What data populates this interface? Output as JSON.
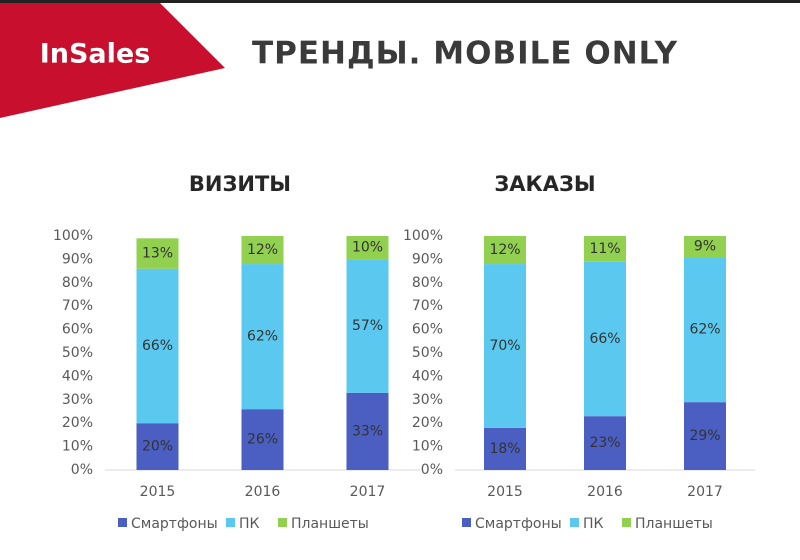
{
  "header": {
    "logo": "InSales",
    "title": "ТРЕНДЫ. MOBILE ONLY"
  },
  "chart_data": [
    {
      "type": "stacked-bar",
      "title": "ВИЗИТЫ",
      "categories": [
        "2015",
        "2016",
        "2017"
      ],
      "series": [
        {
          "name": "Смартфоны",
          "color": "#4a5fc1",
          "values": [
            20,
            26,
            33
          ],
          "value_labels": [
            "20%",
            "26%",
            "33%"
          ]
        },
        {
          "name": "ПК",
          "color": "#5bc8f0",
          "values": [
            66,
            62,
            57
          ],
          "value_labels": [
            "66%",
            "62%",
            "57%"
          ]
        },
        {
          "name": "Планшеты",
          "color": "#92d050",
          "values": [
            13,
            12,
            10
          ],
          "value_labels": [
            "13%",
            "12%",
            "10%"
          ]
        }
      ],
      "ylim": [
        0,
        100
      ],
      "yticks": [
        {
          "value": 0,
          "label": "0%"
        },
        {
          "value": 10,
          "label": "10%"
        },
        {
          "value": 20,
          "label": "20%"
        },
        {
          "value": 30,
          "label": "30%"
        },
        {
          "value": 40,
          "label": "40%"
        },
        {
          "value": 50,
          "label": "50%"
        },
        {
          "value": 60,
          "label": "60%"
        },
        {
          "value": 70,
          "label": "70%"
        },
        {
          "value": 80,
          "label": "80%"
        },
        {
          "value": 90,
          "label": "90%"
        },
        {
          "value": 100,
          "label": "100%"
        }
      ],
      "legend": "bottom"
    },
    {
      "type": "stacked-bar",
      "title": "ЗАКАЗЫ",
      "categories": [
        "2015",
        "2016",
        "2017"
      ],
      "series": [
        {
          "name": "Смартфоны",
          "color": "#4a5fc1",
          "values": [
            18,
            23,
            29
          ],
          "value_labels": [
            "18%",
            "23%",
            "29%"
          ]
        },
        {
          "name": "ПК",
          "color": "#5bc8f0",
          "values": [
            70,
            66,
            62
          ],
          "value_labels": [
            "70%",
            "66%",
            "62%"
          ]
        },
        {
          "name": "Планшеты",
          "color": "#92d050",
          "values": [
            12,
            11,
            9
          ],
          "value_labels": [
            "12%",
            "11%",
            "9%"
          ]
        }
      ],
      "ylim": [
        0,
        100
      ],
      "yticks": [
        {
          "value": 0,
          "label": "0%"
        },
        {
          "value": 10,
          "label": "10%"
        },
        {
          "value": 20,
          "label": "20%"
        },
        {
          "value": 30,
          "label": "30%"
        },
        {
          "value": 40,
          "label": "40%"
        },
        {
          "value": 50,
          "label": "50%"
        },
        {
          "value": 60,
          "label": "60%"
        },
        {
          "value": 70,
          "label": "70%"
        },
        {
          "value": 80,
          "label": "80%"
        },
        {
          "value": 90,
          "label": "90%"
        },
        {
          "value": 100,
          "label": "100%"
        }
      ],
      "legend": "bottom"
    }
  ]
}
